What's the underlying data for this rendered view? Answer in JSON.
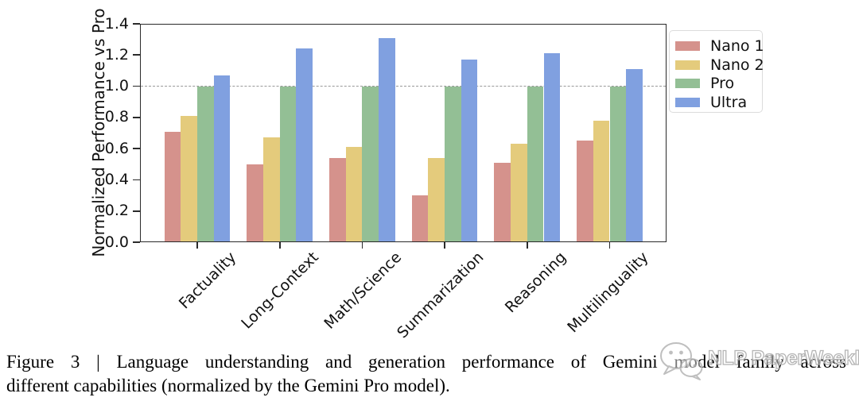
{
  "figure": {
    "caption": {
      "line1": "Figure 3 | Language understanding and generation performance of Gemini model family across",
      "line2": "different capabilities (normalized by the Gemini Pro model)."
    }
  },
  "watermark": {
    "icon": "wechat-icon",
    "text": "NLP PaperWeekly"
  },
  "chart_data": {
    "type": "bar",
    "title": "",
    "xlabel": "",
    "ylabel": "Normalized Performance vs Pro",
    "ylim": [
      0.0,
      1.4
    ],
    "yticks": [
      0.0,
      0.2,
      0.4,
      0.6,
      0.8,
      1.0,
      1.2,
      1.4
    ],
    "reference_line_y": 1.0,
    "reference_line_style": "dashed",
    "grid": false,
    "legend_position": "outside-upper-right",
    "categories": [
      "Factuality",
      "Long-Context",
      "Math/Science",
      "Summarization",
      "Reasoning",
      "Multilinguality"
    ],
    "series": [
      {
        "name": "Nano 1",
        "color": "#d5928c",
        "values": [
          0.71,
          0.5,
          0.54,
          0.3,
          0.51,
          0.65
        ]
      },
      {
        "name": "Nano 2",
        "color": "#e4cb7c",
        "values": [
          0.81,
          0.67,
          0.61,
          0.54,
          0.63,
          0.78
        ]
      },
      {
        "name": "Pro",
        "color": "#93bf95",
        "values": [
          1.0,
          1.0,
          1.0,
          1.0,
          1.0,
          1.0
        ]
      },
      {
        "name": "Ultra",
        "color": "#80a0e0",
        "values": [
          1.07,
          1.24,
          1.31,
          1.17,
          1.21,
          1.11
        ]
      }
    ],
    "axis_color": "#2a2a2a",
    "tick_label_color": "#111111",
    "reference_line_color": "#999999"
  }
}
